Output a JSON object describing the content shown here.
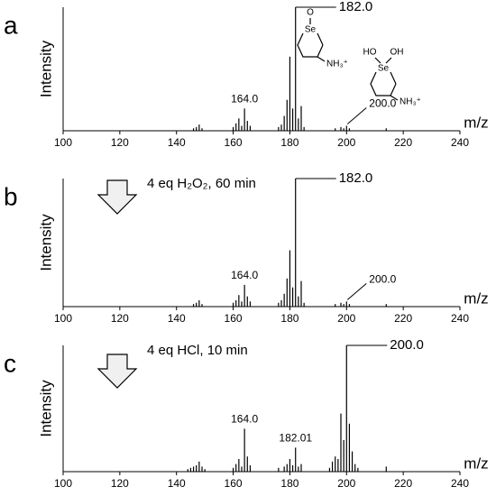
{
  "chart_data": [
    {
      "type": "stem",
      "panel_label": "a",
      "ylabel": "Intensity",
      "xlabel": "m/z",
      "xlim": [
        100,
        240
      ],
      "xticks": [
        100,
        120,
        140,
        160,
        180,
        200,
        220,
        240
      ],
      "ylim": [
        0,
        100
      ],
      "color": "#000000",
      "x": [
        146,
        147,
        148,
        149,
        160,
        161,
        162,
        163,
        164,
        165,
        166,
        176,
        177,
        178,
        179,
        180,
        181,
        182,
        183,
        184,
        185,
        196,
        198,
        199,
        200,
        201,
        214
      ],
      "values": [
        2,
        3,
        5,
        2,
        3,
        6,
        10,
        4,
        18,
        8,
        4,
        3,
        5,
        12,
        25,
        60,
        18,
        100,
        10,
        20,
        3,
        2,
        3,
        2,
        4,
        2,
        2
      ],
      "annotations": [
        {
          "x": 164.0,
          "text": "164.0"
        },
        {
          "x": 182.0,
          "text": "182.0"
        },
        {
          "x": 200.0,
          "text": "200.0"
        }
      ],
      "structure_labels": [
        "O",
        "Se",
        "NH₃⁺",
        "HO",
        "OH",
        "Se",
        "NH₃⁺"
      ]
    },
    {
      "type": "stem",
      "panel_label": "b",
      "ylabel": "Intensity",
      "xlabel": "m/z",
      "note": "4 eq H₂O₂, 60 min",
      "xlim": [
        100,
        240
      ],
      "xticks": [
        100,
        120,
        140,
        160,
        180,
        200,
        220,
        240
      ],
      "ylim": [
        0,
        100
      ],
      "color": "#000000",
      "x": [
        146,
        147,
        148,
        149,
        160,
        161,
        162,
        163,
        164,
        165,
        166,
        176,
        177,
        178,
        179,
        180,
        181,
        182,
        183,
        184,
        185,
        196,
        198,
        199,
        200,
        201,
        214
      ],
      "values": [
        2,
        3,
        5,
        2,
        3,
        5,
        9,
        4,
        17,
        8,
        4,
        3,
        5,
        10,
        22,
        44,
        15,
        100,
        8,
        20,
        3,
        2,
        3,
        2,
        4,
        2,
        2
      ],
      "annotations": [
        {
          "x": 164.0,
          "text": "164.0"
        },
        {
          "x": 182.0,
          "text": "182.0"
        },
        {
          "x": 200.0,
          "text": "200.0"
        }
      ]
    },
    {
      "type": "stem",
      "panel_label": "c",
      "ylabel": "Intensity",
      "xlabel": "m/z",
      "note": "4 eq HCl, 10 min",
      "xlim": [
        100,
        240
      ],
      "xticks": [
        100,
        120,
        140,
        160,
        180,
        200,
        220,
        240
      ],
      "ylim": [
        0,
        100
      ],
      "color": "#000000",
      "x": [
        144,
        145,
        146,
        147,
        148,
        149,
        150,
        160,
        161,
        162,
        163,
        164,
        165,
        166,
        176,
        178,
        179,
        180,
        181,
        182,
        183,
        184,
        194,
        195,
        196,
        197,
        198,
        199,
        200,
        201,
        202,
        203,
        204,
        214
      ],
      "values": [
        2,
        3,
        4,
        5,
        8,
        4,
        2,
        3,
        6,
        10,
        4,
        34,
        12,
        5,
        3,
        4,
        6,
        10,
        5,
        19,
        4,
        6,
        3,
        8,
        12,
        10,
        46,
        25,
        100,
        38,
        16,
        6,
        3,
        4
      ],
      "annotations": [
        {
          "x": 164.0,
          "text": "164.0"
        },
        {
          "x": 182.01,
          "text": "182.01"
        },
        {
          "x": 200.0,
          "text": "200.0"
        }
      ]
    }
  ]
}
